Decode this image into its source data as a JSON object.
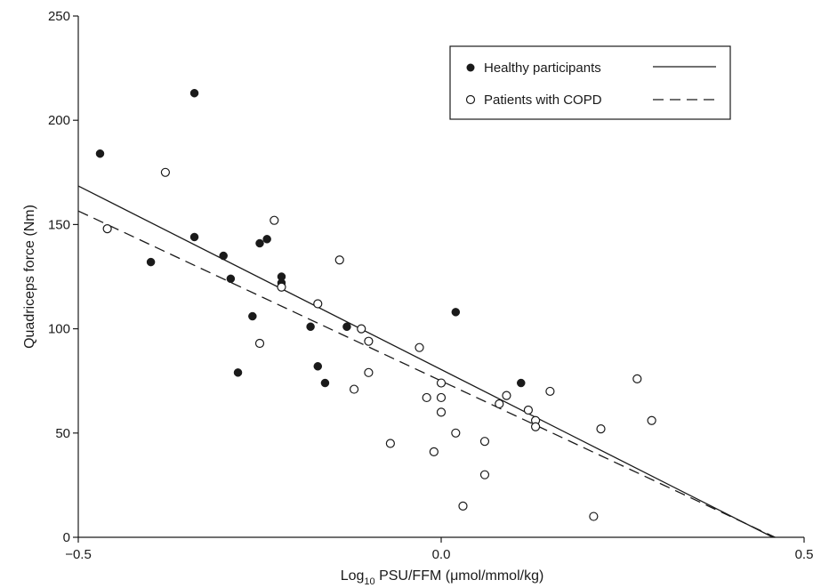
{
  "chart_data": {
    "type": "scatter",
    "title": "",
    "xlabel": "Log10 PSU/FFM (μmol/mmol/kg)",
    "xlabel_parts": {
      "prefix": "Log",
      "subscript": "10",
      "suffix": " PSU/FFM (μmol/mmol/kg)"
    },
    "ylabel": "Quadriceps force (Nm)",
    "xlim": [
      -0.5,
      0.5
    ],
    "ylim": [
      0,
      250
    ],
    "xticks": [
      -0.5,
      0.0,
      0.5
    ],
    "xtick_labels": [
      "−0.5",
      "0.0",
      "0.5"
    ],
    "yticks": [
      0,
      50,
      100,
      150,
      200,
      250
    ],
    "ytick_labels": [
      "0",
      "50",
      "100",
      "150",
      "200",
      "250"
    ],
    "grid": false,
    "legend_position": "top-right",
    "series": [
      {
        "name": "Healthy participants",
        "marker": "filled-circle",
        "line_style": "solid",
        "color": "#1a1a1a",
        "points": [
          [
            -0.47,
            184
          ],
          [
            -0.4,
            132
          ],
          [
            -0.34,
            213
          ],
          [
            -0.34,
            144
          ],
          [
            -0.3,
            135
          ],
          [
            -0.29,
            124
          ],
          [
            -0.28,
            79
          ],
          [
            -0.26,
            106
          ],
          [
            -0.25,
            141
          ],
          [
            -0.24,
            143
          ],
          [
            -0.22,
            125
          ],
          [
            -0.22,
            122
          ],
          [
            -0.18,
            101
          ],
          [
            -0.17,
            82
          ],
          [
            -0.16,
            74
          ],
          [
            -0.13,
            101
          ],
          [
            0.02,
            108
          ],
          [
            0.11,
            74
          ]
        ],
        "fit": {
          "x": [
            -0.5,
            0.457
          ],
          "y": [
            168.5,
            0
          ]
        }
      },
      {
        "name": "Patients with COPD",
        "marker": "open-circle",
        "line_style": "dashed",
        "color": "#1a1a1a",
        "points": [
          [
            -0.46,
            148
          ],
          [
            -0.38,
            175
          ],
          [
            -0.25,
            93
          ],
          [
            -0.23,
            152
          ],
          [
            -0.22,
            120
          ],
          [
            -0.17,
            112
          ],
          [
            -0.14,
            133
          ],
          [
            -0.12,
            71
          ],
          [
            -0.11,
            100
          ],
          [
            -0.1,
            94
          ],
          [
            -0.1,
            79
          ],
          [
            -0.07,
            45
          ],
          [
            -0.03,
            91
          ],
          [
            -0.02,
            67
          ],
          [
            -0.01,
            41
          ],
          [
            0.0,
            74
          ],
          [
            0.0,
            67
          ],
          [
            0.0,
            60
          ],
          [
            0.02,
            50
          ],
          [
            0.03,
            15
          ],
          [
            0.06,
            46
          ],
          [
            0.06,
            30
          ],
          [
            0.08,
            64
          ],
          [
            0.09,
            68
          ],
          [
            0.12,
            61
          ],
          [
            0.13,
            56
          ],
          [
            0.13,
            53
          ],
          [
            0.15,
            70
          ],
          [
            0.21,
            10
          ],
          [
            0.22,
            52
          ],
          [
            0.27,
            76
          ],
          [
            0.29,
            56
          ]
        ],
        "fit": {
          "x": [
            -0.5,
            0.46
          ],
          "y": [
            156.5,
            0
          ]
        }
      }
    ]
  }
}
